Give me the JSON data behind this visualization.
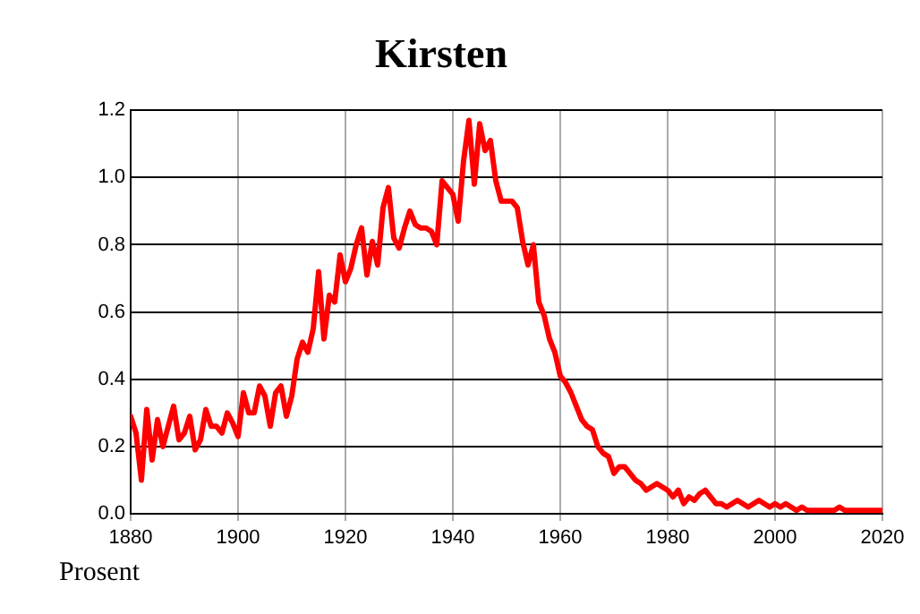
{
  "chart_data": {
    "type": "line",
    "title": "Kirsten",
    "ylabel": "Prosent",
    "x": [
      1880,
      1881,
      1882,
      1883,
      1884,
      1885,
      1886,
      1887,
      1888,
      1889,
      1890,
      1891,
      1892,
      1893,
      1894,
      1895,
      1896,
      1897,
      1898,
      1899,
      1900,
      1901,
      1902,
      1903,
      1904,
      1905,
      1906,
      1907,
      1908,
      1909,
      1910,
      1911,
      1912,
      1913,
      1914,
      1915,
      1916,
      1917,
      1918,
      1919,
      1920,
      1921,
      1922,
      1923,
      1924,
      1925,
      1926,
      1927,
      1928,
      1929,
      1930,
      1931,
      1932,
      1933,
      1934,
      1935,
      1936,
      1937,
      1938,
      1939,
      1940,
      1941,
      1942,
      1943,
      1944,
      1945,
      1946,
      1947,
      1948,
      1949,
      1950,
      1951,
      1952,
      1953,
      1954,
      1955,
      1956,
      1957,
      1958,
      1959,
      1960,
      1961,
      1962,
      1963,
      1964,
      1965,
      1966,
      1967,
      1968,
      1969,
      1970,
      1971,
      1972,
      1973,
      1974,
      1975,
      1976,
      1977,
      1978,
      1979,
      1980,
      1981,
      1982,
      1983,
      1984,
      1985,
      1986,
      1987,
      1988,
      1989,
      1990,
      1991,
      1992,
      1993,
      1994,
      1995,
      1996,
      1997,
      1998,
      1999,
      2000,
      2001,
      2002,
      2003,
      2004,
      2005,
      2006,
      2007,
      2008,
      2009,
      2010,
      2011,
      2012,
      2013,
      2014,
      2015,
      2016,
      2017,
      2018,
      2019,
      2020
    ],
    "series": [
      {
        "color": "#ff0000",
        "values": [
          0.29,
          0.24,
          0.1,
          0.31,
          0.16,
          0.28,
          0.2,
          0.26,
          0.32,
          0.22,
          0.24,
          0.29,
          0.19,
          0.22,
          0.31,
          0.26,
          0.26,
          0.24,
          0.3,
          0.27,
          0.23,
          0.36,
          0.3,
          0.3,
          0.38,
          0.35,
          0.26,
          0.36,
          0.38,
          0.29,
          0.35,
          0.46,
          0.51,
          0.48,
          0.55,
          0.72,
          0.52,
          0.65,
          0.63,
          0.77,
          0.69,
          0.73,
          0.8,
          0.85,
          0.71,
          0.81,
          0.74,
          0.91,
          0.97,
          0.82,
          0.79,
          0.85,
          0.9,
          0.86,
          0.85,
          0.85,
          0.84,
          0.8,
          0.99,
          0.97,
          0.95,
          0.87,
          1.05,
          1.17,
          0.98,
          1.16,
          1.08,
          1.11,
          0.99,
          0.93,
          0.93,
          0.93,
          0.91,
          0.81,
          0.74,
          0.8,
          0.63,
          0.59,
          0.52,
          0.48,
          0.41,
          0.39,
          0.36,
          0.32,
          0.28,
          0.26,
          0.25,
          0.2,
          0.18,
          0.17,
          0.12,
          0.14,
          0.14,
          0.12,
          0.1,
          0.09,
          0.07,
          0.08,
          0.09,
          0.08,
          0.07,
          0.05,
          0.07,
          0.03,
          0.05,
          0.04,
          0.06,
          0.07,
          0.05,
          0.03,
          0.03,
          0.02,
          0.03,
          0.04,
          0.03,
          0.02,
          0.03,
          0.04,
          0.03,
          0.02,
          0.03,
          0.02,
          0.03,
          0.02,
          0.01,
          0.02,
          0.01,
          0.01,
          0.01,
          0.01,
          0.01,
          0.01,
          0.02,
          0.01,
          0.01,
          0.01,
          0.01,
          0.01,
          0.01,
          0.01,
          0.01
        ]
      }
    ],
    "xlim": [
      1880,
      2020
    ],
    "xticks": [
      1880,
      1900,
      1920,
      1940,
      1960,
      1980,
      2000,
      2020
    ],
    "ylim": [
      0,
      1.2
    ],
    "yticks": [
      {
        "value": 0,
        "label": "0.0"
      },
      {
        "value": 0.2,
        "label": "0.2"
      },
      {
        "value": 0.4,
        "label": "0.4"
      },
      {
        "value": 0.6,
        "label": "0.6"
      },
      {
        "value": 0.8,
        "label": "0.8"
      },
      {
        "value": 1.0,
        "label": "1.0"
      },
      {
        "value": 1.2,
        "label": "1.2"
      }
    ],
    "grid": true,
    "legend": false,
    "marker": "none",
    "line_style": "solid"
  }
}
